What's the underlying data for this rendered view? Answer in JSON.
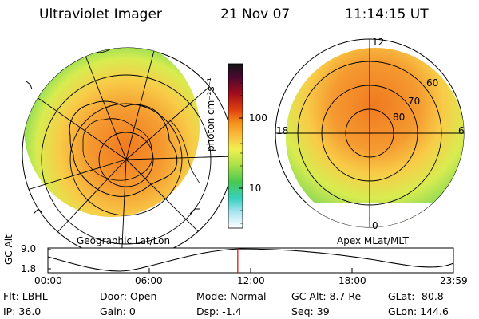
{
  "header": {
    "instrument": "Ultraviolet Imager",
    "date": "21 Nov 07",
    "time": "11:14:15 UT"
  },
  "colorbar": {
    "unit_label": "photon cm⁻²s⁻¹",
    "ticks": [
      "100",
      "10"
    ],
    "colors": [
      "#1a1a1a",
      "#5a0a2a",
      "#8a0a20",
      "#c01818",
      "#e85010",
      "#f59020",
      "#f8c040",
      "#f0f050",
      "#a8e048",
      "#50c850",
      "#30c8a0",
      "#60d8e8",
      "#b8ecf4",
      "#ffffff"
    ]
  },
  "left_panel": {
    "label": "Geographic Lat/Lon"
  },
  "right_panel": {
    "label": "Apex MLat/MLT",
    "mlt_labels": [
      "12",
      "18",
      "6",
      "0"
    ],
    "lat_labels": [
      "60",
      "70",
      "80"
    ]
  },
  "timeline": {
    "axis_label": "GC Alt",
    "y_ticks": [
      "9.0",
      "1.8"
    ],
    "x_ticks": [
      "00:00",
      "06:00",
      "12:00",
      "18:00",
      "23:59"
    ],
    "current_time_fraction": 0.4682,
    "marker_color": "#e00000"
  },
  "status": {
    "flt": "Flt:  LBHL",
    "ip": "IP:  36.0",
    "door": "Door:  Open",
    "gain": "Gain:    0",
    "mode": "Mode:  Normal",
    "dsp": "Dsp:      -1.4",
    "gc_alt": "GC Alt:  8.7 Re",
    "seq": "Seq:  39",
    "glat": "GLat:  -80.8",
    "glon": "GLon:  144.6"
  }
}
